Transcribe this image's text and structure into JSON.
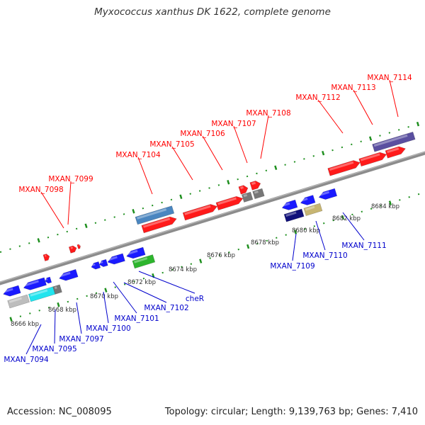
{
  "header": {
    "title": "Myxococcus xanthus DK 1622, complete genome"
  },
  "footer": {
    "accession": "Accession: NC_008095",
    "summary": "Topology: circular; Length: 9,139,763 bp; Genes: 7,410"
  },
  "colors": {
    "backbone": "#8c8c8c",
    "tick_ring": "#1e8f1e",
    "forward_label": "#ff0000",
    "reverse_label": "#0000cc",
    "gene_red": "#ff1a1a",
    "gene_blue": "#1a1aff",
    "gene_gray": "#777777",
    "gene_steelblue": "#4a86c0",
    "gene_green": "#2db52d",
    "gene_cyan": "#22e4ee",
    "gene_lightgray": "#bdbdbd",
    "gene_navy": "#10107a",
    "gene_khaki": "#c7b572",
    "gene_slate": "#5a4fa0"
  },
  "scale": {
    "unit": "kbp",
    "labels": [
      "8666 kbp",
      "8668 kbp",
      "8670 kbp",
      "8672 kbp",
      "8674 kbp",
      "8676 kbp",
      "8678 kbp",
      "8680 kbp",
      "8682 kbp",
      "8684 kbp"
    ]
  },
  "forward_gene_labels": [
    "MXAN_7098",
    "MXAN_7099",
    "MXAN_7104",
    "MXAN_7105",
    "MXAN_7106",
    "MXAN_7107",
    "MXAN_7108",
    "MXAN_7112",
    "MXAN_7113",
    "MXAN_7114"
  ],
  "reverse_gene_labels": [
    "MXAN_7094",
    "MXAN_7095",
    "MXAN_7097",
    "MXAN_7100",
    "MXAN_7101",
    "MXAN_7102",
    "cheR",
    "MXAN_7109",
    "MXAN_7110",
    "MXAN_7111"
  ]
}
